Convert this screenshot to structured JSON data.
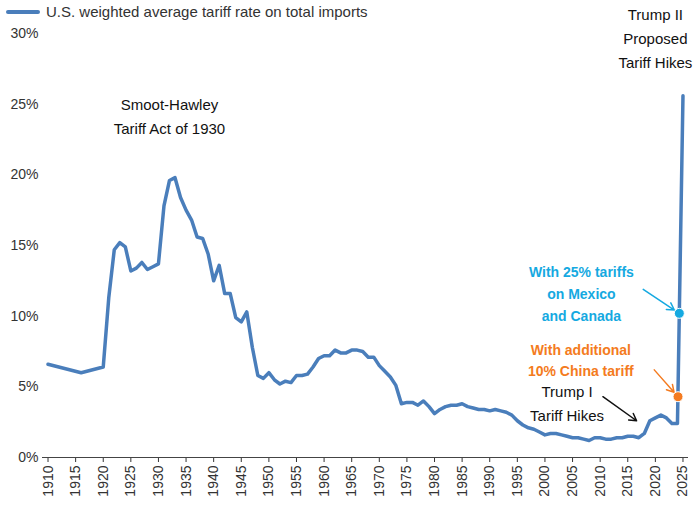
{
  "chart_data": {
    "type": "line",
    "x": [
      1910,
      1916,
      1920,
      1921,
      1922,
      1923,
      1924,
      1925,
      1926,
      1927,
      1928,
      1929,
      1930,
      1931,
      1932,
      1933,
      1934,
      1935,
      1936,
      1937,
      1938,
      1939,
      1940,
      1941,
      1942,
      1943,
      1944,
      1945,
      1946,
      1947,
      1948,
      1949,
      1950,
      1951,
      1952,
      1953,
      1954,
      1955,
      1956,
      1957,
      1958,
      1959,
      1960,
      1961,
      1962,
      1963,
      1964,
      1965,
      1966,
      1967,
      1968,
      1969,
      1970,
      1971,
      1972,
      1973,
      1974,
      1975,
      1976,
      1977,
      1978,
      1979,
      1980,
      1981,
      1982,
      1983,
      1984,
      1985,
      1986,
      1987,
      1988,
      1989,
      1990,
      1991,
      1992,
      1993,
      1994,
      1995,
      1996,
      1997,
      1998,
      1999,
      2000,
      2001,
      2002,
      2003,
      2004,
      2005,
      2006,
      2007,
      2008,
      2009,
      2010,
      2011,
      2012,
      2013,
      2014,
      2015,
      2016,
      2017,
      2018,
      2019,
      2020,
      2021,
      2022,
      2023,
      2024,
      2025
    ],
    "series": [
      {
        "name": "U.S. weighted average tariff rate on total imports",
        "color": "#4a7ebb",
        "values": [
          6.6,
          6.0,
          6.4,
          11.3,
          14.7,
          15.2,
          14.9,
          13.2,
          13.4,
          13.8,
          13.3,
          13.5,
          13.7,
          17.8,
          19.6,
          19.8,
          18.4,
          17.5,
          16.8,
          15.6,
          15.5,
          14.4,
          12.5,
          13.6,
          11.6,
          11.6,
          9.9,
          9.6,
          10.3,
          7.8,
          5.8,
          5.6,
          6.0,
          5.5,
          5.2,
          5.4,
          5.3,
          5.8,
          5.8,
          5.9,
          6.4,
          7.0,
          7.2,
          7.2,
          7.6,
          7.4,
          7.4,
          7.6,
          7.6,
          7.5,
          7.1,
          7.1,
          6.5,
          6.1,
          5.7,
          5.1,
          3.8,
          3.9,
          3.9,
          3.7,
          4.0,
          3.6,
          3.1,
          3.4,
          3.6,
          3.7,
          3.7,
          3.8,
          3.6,
          3.5,
          3.4,
          3.4,
          3.3,
          3.4,
          3.3,
          3.2,
          3.0,
          2.6,
          2.3,
          2.1,
          2.0,
          1.8,
          1.6,
          1.7,
          1.7,
          1.6,
          1.5,
          1.4,
          1.4,
          1.3,
          1.2,
          1.4,
          1.4,
          1.3,
          1.3,
          1.4,
          1.4,
          1.5,
          1.5,
          1.4,
          1.7,
          2.6,
          2.8,
          3.0,
          2.8,
          2.4,
          2.4,
          25.6
        ]
      }
    ],
    "xlim": [
      1909,
      2026
    ],
    "xticks": [
      1910,
      1915,
      1920,
      1925,
      1930,
      1935,
      1940,
      1945,
      1950,
      1955,
      1960,
      1965,
      1970,
      1975,
      1980,
      1985,
      1990,
      1995,
      2000,
      2005,
      2010,
      2015,
      2020,
      2025
    ],
    "ylim": [
      0,
      30
    ],
    "yticks": [
      {
        "value": 0,
        "label": "0%"
      },
      {
        "value": 5,
        "label": "5%"
      },
      {
        "value": 10,
        "label": "10%"
      },
      {
        "value": 15,
        "label": "15%"
      },
      {
        "value": 20,
        "label": "20%"
      },
      {
        "value": 25,
        "label": "25%"
      },
      {
        "value": 30,
        "label": "30%"
      }
    ],
    "grid": false,
    "legend": "top-left",
    "annotations": [
      {
        "text": "Smoot-Hawley\nTariff Act of 1930",
        "x": 1932,
        "y": 24.3
      },
      {
        "text": "Trump II\nProposed\nTariff Hikes",
        "x": 2020,
        "y": 29.8
      },
      {
        "text": "Trump I\nTariff Hikes",
        "x": 2004,
        "y": 4.0,
        "arrow_from": [
          2010.5,
          4.3
        ],
        "arrow_to": [
          2016.6,
          2.6
        ]
      }
    ],
    "markers": [
      {
        "label": "With 25% tariffs\non Mexico\nand Canada",
        "color": "#15a9e1",
        "x": 2024.34,
        "y": 10.2,
        "label_x": 2006.6,
        "label_y": 11.7,
        "arrow_from": [
          2017.8,
          11.9
        ]
      },
      {
        "label": "With additional\n10% China tariff",
        "color": "#f47b20",
        "x": 2024.1,
        "y": 4.3,
        "label_x": 2006.5,
        "label_y": 7.0,
        "arrow_from": [
          2019.8,
          6.2
        ]
      }
    ]
  }
}
